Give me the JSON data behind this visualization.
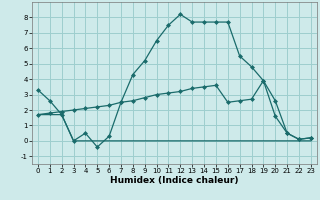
{
  "xlabel": "Humidex (Indice chaleur)",
  "bg_color": "#ceeaea",
  "grid_color": "#9ecece",
  "line_color": "#1a6b6b",
  "xlim": [
    -0.5,
    23.5
  ],
  "ylim": [
    -1.5,
    9.0
  ],
  "yticks": [
    -1,
    0,
    1,
    2,
    3,
    4,
    5,
    6,
    7,
    8
  ],
  "xticks": [
    0,
    1,
    2,
    3,
    4,
    5,
    6,
    7,
    8,
    9,
    10,
    11,
    12,
    13,
    14,
    15,
    16,
    17,
    18,
    19,
    20,
    21,
    22,
    23
  ],
  "line1_x": [
    0,
    1,
    2,
    3,
    4,
    5,
    6,
    7,
    8,
    9,
    10,
    11,
    12,
    13,
    14,
    15,
    16,
    17,
    18,
    19,
    20,
    21,
    22,
    23
  ],
  "line1_y": [
    3.3,
    2.6,
    1.7,
    0.0,
    0.5,
    -0.4,
    0.3,
    2.5,
    4.3,
    5.2,
    6.5,
    7.5,
    8.2,
    7.7,
    7.7,
    7.7,
    7.7,
    5.5,
    4.8,
    3.9,
    1.6,
    0.5,
    0.1,
    0.2
  ],
  "line2_x": [
    0,
    2,
    3,
    4,
    5,
    6,
    7,
    8,
    9,
    10,
    11,
    12,
    13,
    14,
    15,
    16,
    17,
    18,
    19,
    20,
    21,
    22,
    23
  ],
  "line2_y": [
    1.7,
    1.7,
    0.0,
    0.0,
    0.0,
    0.0,
    0.0,
    0.0,
    0.0,
    0.0,
    0.0,
    0.0,
    0.0,
    0.0,
    0.0,
    0.0,
    0.0,
    0.0,
    0.0,
    0.0,
    0.0,
    0.0,
    0.0
  ],
  "line3_x": [
    0,
    1,
    2,
    3,
    4,
    5,
    6,
    7,
    8,
    9,
    10,
    11,
    12,
    13,
    14,
    15,
    16,
    17,
    18,
    19,
    20,
    21,
    22,
    23
  ],
  "line3_y": [
    1.7,
    1.8,
    1.9,
    2.0,
    2.1,
    2.2,
    2.3,
    2.5,
    2.6,
    2.8,
    3.0,
    3.1,
    3.2,
    3.4,
    3.5,
    3.6,
    2.5,
    2.6,
    2.7,
    3.9,
    2.6,
    0.5,
    0.1,
    0.2
  ],
  "ticklabel_fontsize": 5.0,
  "xlabel_fontsize": 6.5
}
